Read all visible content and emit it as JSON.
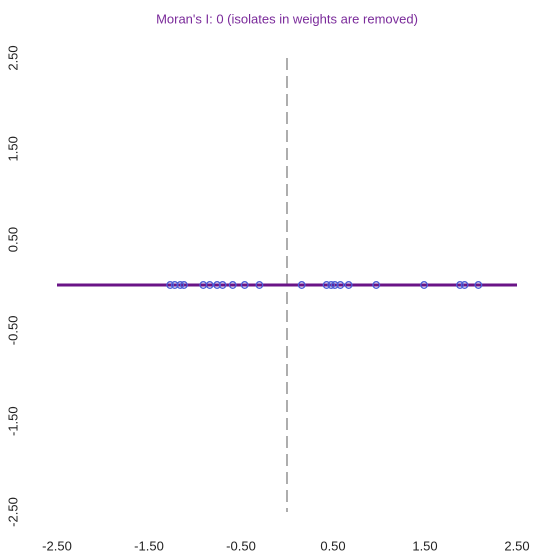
{
  "chart_data": {
    "type": "scatter",
    "title": "Moran's I: 0 (isolates in weights are removed)",
    "series": [
      {
        "color": "#4b5fd6",
        "x": [
          -1.27,
          -1.22,
          -1.16,
          -1.12,
          -0.91,
          -0.84,
          -0.76,
          -0.7,
          -0.59,
          -0.46,
          -0.3,
          0.16,
          0.43,
          0.48,
          0.52,
          0.58,
          0.67,
          0.97,
          1.49,
          1.88,
          1.93,
          2.08
        ],
        "values": [
          0,
          0,
          0,
          0,
          0,
          0,
          0,
          0,
          0,
          0,
          0,
          0,
          0,
          0,
          0,
          0,
          0,
          0,
          0,
          0,
          0,
          0
        ]
      }
    ],
    "regression": {
      "slope": 0,
      "intercept": 0,
      "color": "#6a1487"
    },
    "vline": 0,
    "xlim": [
      -2.5,
      2.5
    ],
    "ylim": [
      -2.5,
      2.5
    ],
    "xticks": [
      {
        "value": -2.5,
        "label": "-2.50"
      },
      {
        "value": -1.5,
        "label": "-1.50"
      },
      {
        "value": -0.5,
        "label": "-0.50"
      },
      {
        "value": 0.5,
        "label": "0.50"
      },
      {
        "value": 1.5,
        "label": "1.50"
      },
      {
        "value": 2.5,
        "label": "2.50"
      }
    ],
    "yticks": [
      {
        "value": -2.5,
        "label": "-2.50"
      },
      {
        "value": -1.5,
        "label": "-1.50"
      },
      {
        "value": -0.5,
        "label": "-0.50"
      },
      {
        "value": 0.5,
        "label": "0.50"
      },
      {
        "value": 1.5,
        "label": "1.50"
      },
      {
        "value": 2.5,
        "label": "2.50"
      }
    ],
    "title_color": "#7a2a9a"
  }
}
